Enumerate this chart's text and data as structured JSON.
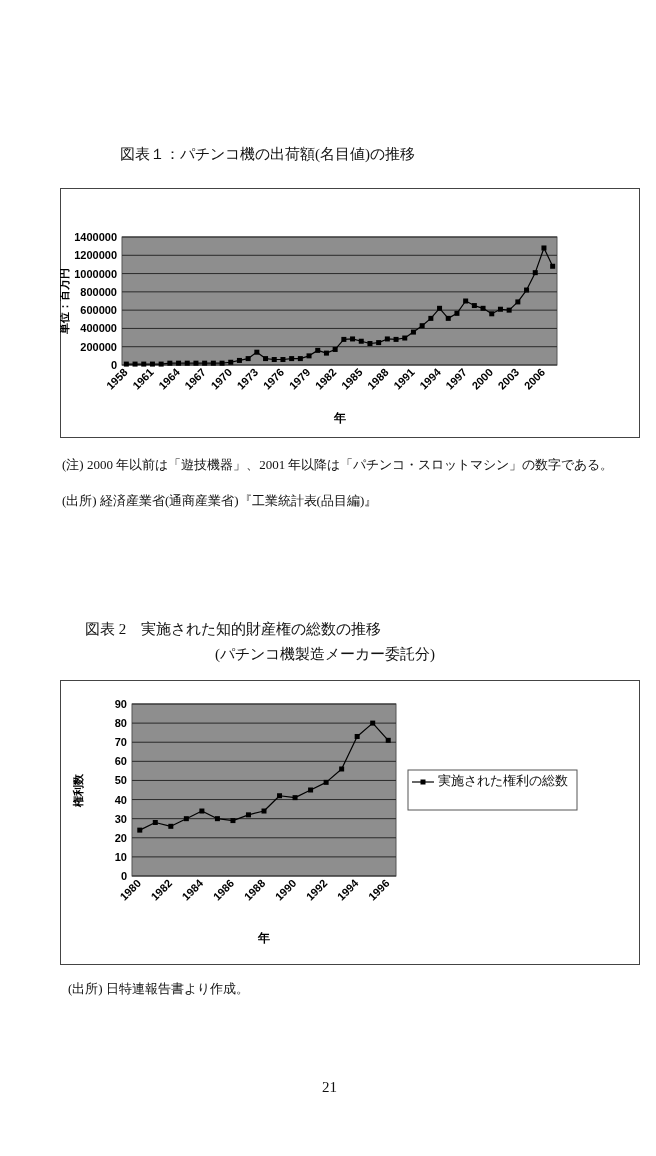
{
  "chart_data": [
    {
      "type": "line",
      "title": "図表１：パチンコ機の出荷額(名目値)の推移",
      "xlabel": "年",
      "ylabel": "単位：百万円",
      "categories": [
        "1958",
        null,
        null,
        "1961",
        null,
        null,
        "1964",
        null,
        null,
        "1967",
        null,
        null,
        "1970",
        null,
        null,
        "1973",
        null,
        null,
        "1976",
        null,
        null,
        "1979",
        null,
        null,
        "1982",
        null,
        null,
        "1985",
        null,
        null,
        "1988",
        null,
        null,
        "1991",
        null,
        null,
        "1994",
        null,
        null,
        "1997",
        null,
        null,
        "2000",
        null,
        null,
        "2003",
        null,
        null,
        "2006",
        null
      ],
      "series": [
        {
          "color": "#000000",
          "values": [
            10000,
            10000,
            10000,
            10000,
            10000,
            20000,
            20000,
            20000,
            20000,
            20000,
            20000,
            20000,
            30000,
            50000,
            70000,
            140000,
            70000,
            60000,
            60000,
            70000,
            70000,
            100000,
            160000,
            130000,
            170000,
            280000,
            285000,
            260000,
            235000,
            245000,
            285000,
            280000,
            295000,
            360000,
            430000,
            510000,
            620000,
            510000,
            565000,
            700000,
            650000,
            620000,
            560000,
            610000,
            600000,
            690000,
            820000,
            1010000,
            1280000,
            1080000
          ]
        }
      ],
      "ylim": [
        0,
        1400000
      ],
      "yticks": [
        0,
        200000,
        400000,
        600000,
        800000,
        1000000,
        1200000,
        1400000
      ],
      "grid": "y",
      "marker": "square",
      "line_style": "solid",
      "annotations": [
        "(注) 2000 年以前は「遊技機器」、2001 年以降は「パチンコ・スロットマシン」の数字である。",
        "(出所) 経済産業省(通商産業省)『工業統計表(品目編)』"
      ]
    },
    {
      "type": "line",
      "title": "図表 2　実施された知的財産権の総数の推移",
      "subtitle": "(パチンコ機製造メーカー委託分)",
      "xlabel": "年",
      "ylabel": "権利数",
      "categories": [
        "1980",
        null,
        "1982",
        null,
        "1984",
        null,
        "1986",
        null,
        "1988",
        null,
        "1990",
        null,
        "1992",
        null,
        "1994",
        null,
        "1996"
      ],
      "series": [
        {
          "name": "実施された権利の総数",
          "color": "#000000",
          "values": [
            24,
            28,
            26,
            30,
            34,
            30,
            29,
            32,
            34,
            42,
            41,
            45,
            49,
            56,
            73,
            80,
            71
          ]
        }
      ],
      "ylim": [
        0,
        90
      ],
      "yticks": [
        0,
        10,
        20,
        30,
        40,
        50,
        60,
        70,
        80,
        90
      ],
      "grid": "y",
      "legend": "right",
      "marker": "square",
      "line_style": "solid",
      "annotations": [
        "(出所) 日特連報告書より作成。",
        "21"
      ]
    }
  ]
}
